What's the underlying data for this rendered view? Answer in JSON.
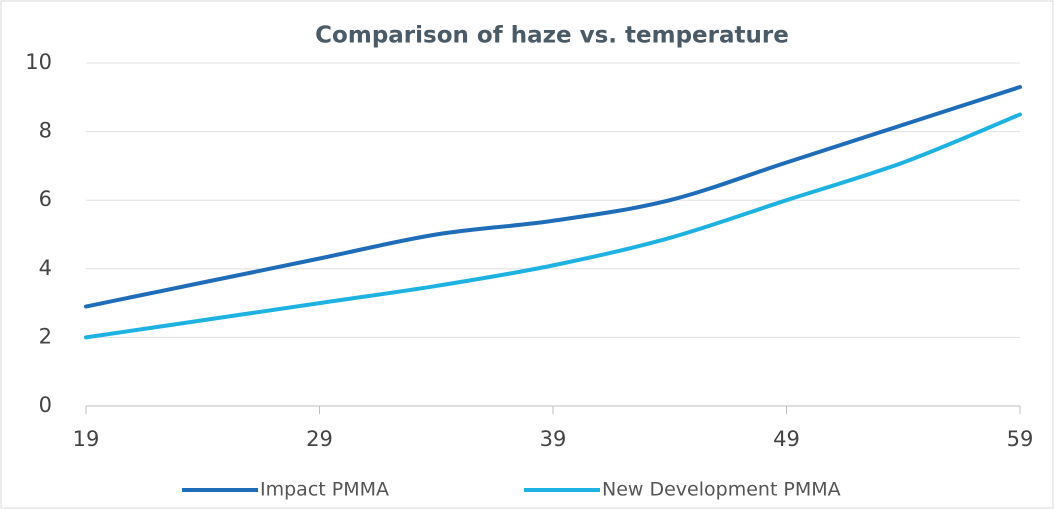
{
  "chart_data": {
    "type": "line",
    "title": "Comparison of haze vs. temperature",
    "x": [
      19,
      24,
      29,
      34,
      39,
      44,
      49,
      54,
      59
    ],
    "series": [
      {
        "name": "Impact PMMA",
        "color": "#1f6cb8",
        "values": [
          2.9,
          3.6,
          4.3,
          5.0,
          5.4,
          6.0,
          7.1,
          8.2,
          9.3
        ]
      },
      {
        "name": "New Development PMMA",
        "color": "#1eb2e2",
        "values": [
          2.0,
          2.5,
          3.0,
          3.5,
          4.1,
          4.9,
          6.0,
          7.1,
          8.5
        ]
      }
    ],
    "xlim": [
      19,
      59
    ],
    "xticks": [
      19,
      29,
      39,
      49,
      59
    ],
    "ylim": [
      0,
      10
    ],
    "yticks": [
      0,
      2,
      4,
      6,
      8,
      10
    ],
    "grid": true,
    "legend": "bottom",
    "smooth": true
  }
}
